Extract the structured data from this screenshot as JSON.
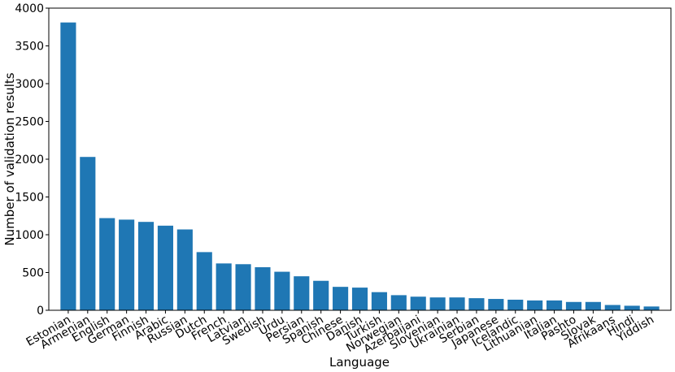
{
  "chart_data": {
    "type": "bar",
    "xlabel": "Language",
    "ylabel": "Number of validation results",
    "ylim": [
      0,
      4000
    ],
    "yticks": [
      0,
      500,
      1000,
      1500,
      2000,
      2500,
      3000,
      3500,
      4000
    ],
    "grid": false,
    "bar_color": "#1f77b4",
    "categories": [
      "Estonian",
      "Armenian",
      "English",
      "German",
      "Finnish",
      "Arabic",
      "Russian",
      "Dutch",
      "French",
      "Latvian",
      "Swedish",
      "Urdu",
      "Persian",
      "Spanish",
      "Chinese",
      "Danish",
      "Turkish",
      "Norwegian",
      "Azerbaijani",
      "Slovenian",
      "Ukrainian",
      "Serbian",
      "Japanese",
      "Icelandic",
      "Lithuanian",
      "Italian",
      "Pashto",
      "Slovak",
      "Afrikaans",
      "Hindi",
      "Yiddish"
    ],
    "values": [
      3810,
      2030,
      1220,
      1200,
      1170,
      1120,
      1070,
      770,
      620,
      610,
      570,
      510,
      450,
      390,
      310,
      300,
      240,
      200,
      180,
      170,
      170,
      160,
      150,
      140,
      130,
      130,
      110,
      110,
      70,
      60,
      50
    ]
  }
}
